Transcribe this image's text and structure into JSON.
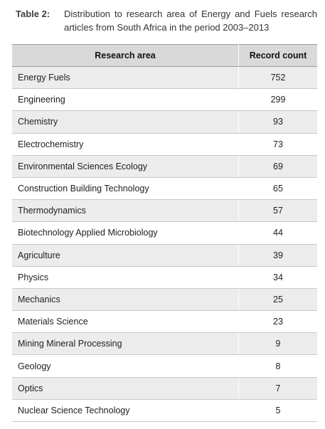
{
  "caption": {
    "label": "Table 2:",
    "text": "Distribution to research area of Energy and Fuels research articles from South Africa in the period 2003–2013"
  },
  "table": {
    "headers": {
      "area": "Research area",
      "count": "Record count"
    },
    "rows": [
      {
        "area": "Energy Fuels",
        "count": "752"
      },
      {
        "area": "Engineering",
        "count": "299"
      },
      {
        "area": "Chemistry",
        "count": "93"
      },
      {
        "area": "Electrochemistry",
        "count": "73"
      },
      {
        "area": "Environmental Sciences Ecology",
        "count": "69"
      },
      {
        "area": "Construction Building Technology",
        "count": "65"
      },
      {
        "area": "Thermodynamics",
        "count": "57"
      },
      {
        "area": "Biotechnology Applied Microbiology",
        "count": "44"
      },
      {
        "area": "Agriculture",
        "count": "39"
      },
      {
        "area": "Physics",
        "count": "34"
      },
      {
        "area": "Mechanics",
        "count": "25"
      },
      {
        "area": "Materials Science",
        "count": "23"
      },
      {
        "area": "Mining Mineral Processing",
        "count": "9"
      },
      {
        "area": "Geology",
        "count": "8"
      },
      {
        "area": "Optics",
        "count": "7"
      },
      {
        "area": "Nuclear Science Technology",
        "count": "5"
      }
    ]
  }
}
